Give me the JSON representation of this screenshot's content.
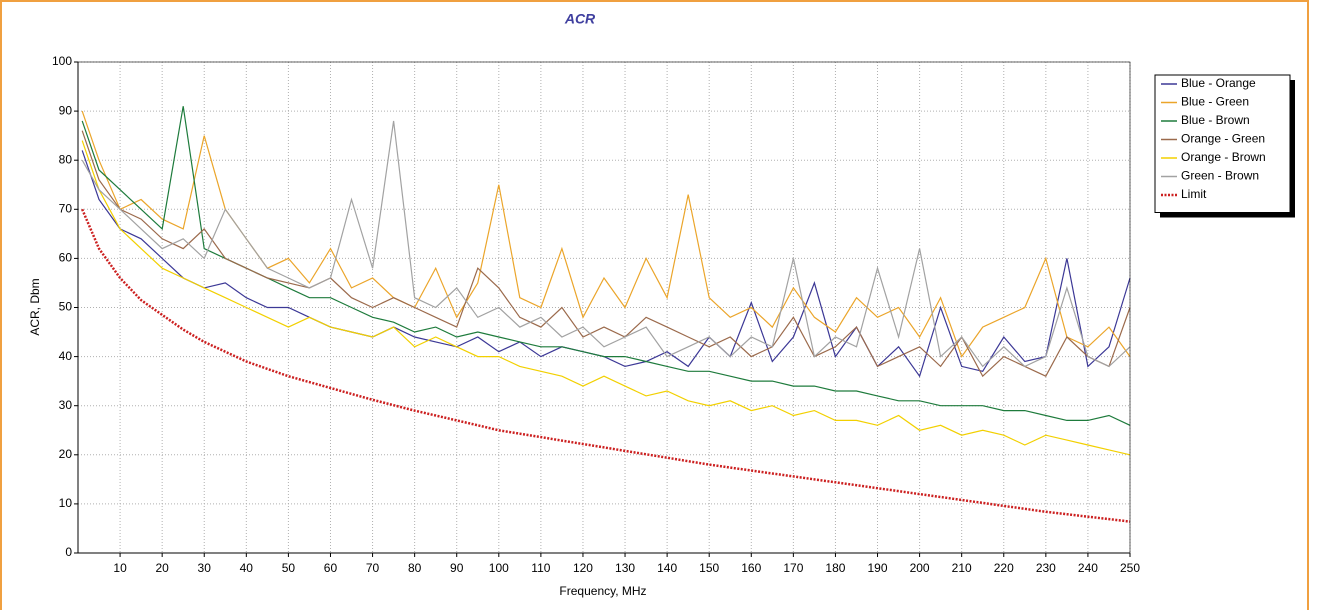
{
  "chart_data": {
    "type": "line",
    "title": "ACR",
    "xlabel": "Frequency, MHz",
    "ylabel": "ACR, Dbm",
    "x": [
      1,
      5,
      10,
      15,
      20,
      25,
      30,
      35,
      40,
      45,
      50,
      55,
      60,
      65,
      70,
      75,
      80,
      85,
      90,
      95,
      100,
      105,
      110,
      115,
      120,
      125,
      130,
      135,
      140,
      145,
      150,
      155,
      160,
      165,
      170,
      175,
      180,
      185,
      190,
      195,
      200,
      205,
      210,
      215,
      220,
      225,
      230,
      235,
      240,
      245,
      250
    ],
    "xlim": [
      0,
      250
    ],
    "xticks": [
      10,
      20,
      30,
      40,
      50,
      60,
      70,
      80,
      90,
      100,
      110,
      120,
      130,
      140,
      150,
      160,
      170,
      180,
      190,
      200,
      210,
      220,
      230,
      240,
      250
    ],
    "ylim": [
      0,
      100
    ],
    "yticks": [
      0,
      10,
      20,
      30,
      40,
      50,
      60,
      70,
      80,
      90,
      100
    ],
    "grid": true,
    "legend": "right",
    "series": [
      {
        "name": "Blue - Orange",
        "color": "#3c3896",
        "values": [
          82,
          72,
          66,
          64,
          60,
          56,
          54,
          55,
          52,
          50,
          50,
          48,
          46,
          45,
          44,
          46,
          44,
          43,
          42,
          44,
          41,
          43,
          40,
          42,
          41,
          40,
          38,
          39,
          41,
          38,
          44,
          40,
          51,
          39,
          44,
          55,
          40,
          46,
          38,
          42,
          36,
          50,
          38,
          37,
          44,
          39,
          40,
          60,
          38,
          42,
          56
        ]
      },
      {
        "name": "Blue - Green",
        "color": "#eba52a",
        "values": [
          90,
          80,
          70,
          72,
          68,
          66,
          85,
          70,
          64,
          58,
          60,
          55,
          62,
          54,
          56,
          52,
          50,
          58,
          48,
          55,
          75,
          52,
          50,
          62,
          48,
          56,
          50,
          60,
          52,
          73,
          52,
          48,
          50,
          46,
          54,
          48,
          45,
          52,
          48,
          50,
          44,
          52,
          40,
          46,
          48,
          50,
          60,
          44,
          42,
          46,
          40
        ]
      },
      {
        "name": "Blue - Brown",
        "color": "#1e7b3c",
        "values": [
          88,
          78,
          74,
          70,
          66,
          91,
          62,
          60,
          58,
          56,
          54,
          52,
          52,
          50,
          48,
          47,
          45,
          46,
          44,
          45,
          44,
          43,
          42,
          42,
          41,
          40,
          40,
          39,
          38,
          37,
          37,
          36,
          35,
          35,
          34,
          34,
          33,
          33,
          32,
          31,
          31,
          30,
          30,
          30,
          29,
          29,
          28,
          27,
          27,
          28,
          26
        ]
      },
      {
        "name": "Orange - Green",
        "color": "#9b6a4c",
        "values": [
          86,
          76,
          70,
          68,
          64,
          62,
          66,
          60,
          58,
          56,
          55,
          54,
          56,
          52,
          50,
          52,
          50,
          48,
          46,
          58,
          54,
          48,
          46,
          50,
          44,
          46,
          44,
          48,
          46,
          44,
          42,
          44,
          40,
          42,
          48,
          40,
          42,
          46,
          38,
          40,
          42,
          38,
          44,
          36,
          40,
          38,
          36,
          44,
          40,
          38,
          50
        ]
      },
      {
        "name": "Orange - Brown",
        "color": "#f2d000",
        "values": [
          84,
          74,
          66,
          62,
          58,
          56,
          54,
          52,
          50,
          48,
          46,
          48,
          46,
          45,
          44,
          46,
          42,
          44,
          42,
          40,
          40,
          38,
          37,
          36,
          34,
          36,
          34,
          32,
          33,
          31,
          30,
          31,
          29,
          30,
          28,
          29,
          27,
          27,
          26,
          28,
          25,
          26,
          24,
          25,
          24,
          22,
          24,
          23,
          22,
          21,
          20
        ]
      },
      {
        "name": "Green - Brown",
        "color": "#a2a2a2",
        "values": [
          80,
          74,
          70,
          66,
          62,
          64,
          60,
          70,
          64,
          58,
          56,
          54,
          56,
          72,
          58,
          88,
          52,
          50,
          54,
          48,
          50,
          46,
          48,
          44,
          46,
          42,
          44,
          46,
          40,
          42,
          44,
          40,
          44,
          42,
          60,
          40,
          44,
          42,
          58,
          44,
          62,
          40,
          44,
          38,
          42,
          38,
          40,
          54,
          40,
          38,
          42
        ]
      },
      {
        "name": "Limit",
        "color": "#cc2020",
        "dashed": true,
        "values": [
          70,
          62,
          56,
          51.5,
          48.5,
          45.5,
          43,
          41,
          39,
          37.5,
          36,
          34.8,
          33.6,
          32.4,
          31.2,
          30.1,
          29,
          28,
          27,
          26,
          25,
          24.3,
          23.6,
          22.9,
          22.2,
          21.5,
          20.8,
          20.1,
          19.4,
          18.7,
          18,
          17.4,
          16.8,
          16.2,
          15.6,
          15,
          14.4,
          13.8,
          13.2,
          12.6,
          12,
          11.4,
          10.8,
          10.2,
          9.6,
          9,
          8.4,
          7.9,
          7.4,
          6.9,
          6.4
        ]
      }
    ]
  }
}
